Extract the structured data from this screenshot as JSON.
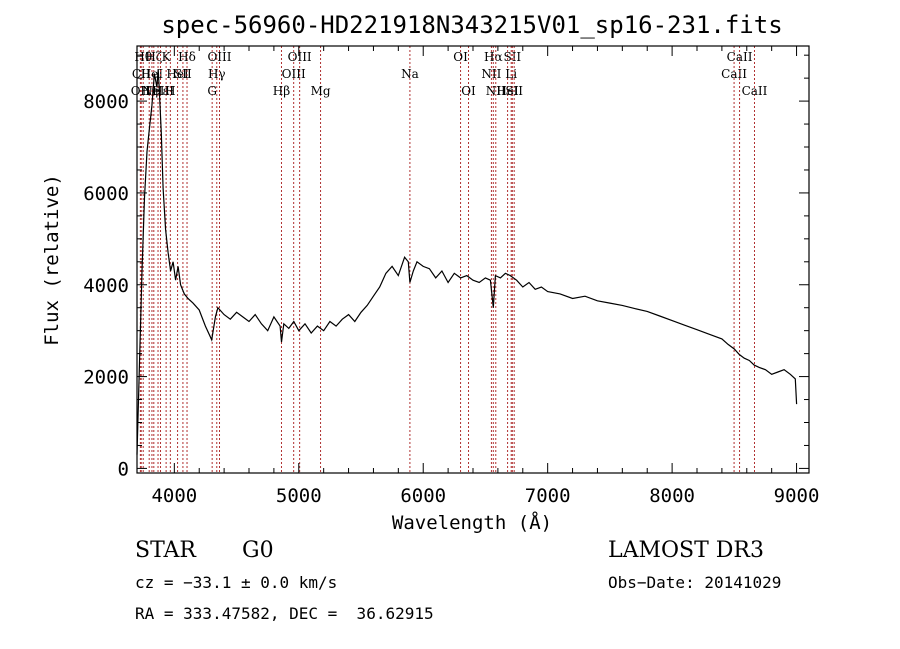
{
  "chart_data": {
    "type": "line",
    "title": "spec-56960-HD221918N343215V01_sp16-231.fits",
    "xlabel": "Wavelength (Å)",
    "ylabel": "Flux (relative)",
    "xlim": [
      3700,
      9100
    ],
    "ylim": [
      -100,
      9200
    ],
    "x_ticks": [
      4000,
      5000,
      6000,
      7000,
      8000,
      9000
    ],
    "y_ticks": [
      0,
      2000,
      4000,
      6000,
      8000
    ],
    "grid": false,
    "series": [
      {
        "x": [
          3700,
          3720,
          3740,
          3760,
          3780,
          3800,
          3820,
          3840,
          3860,
          3870,
          3880,
          3895,
          3910,
          3930,
          3950,
          3970,
          3990,
          4010,
          4030,
          4050,
          4080,
          4110,
          4150,
          4200,
          4250,
          4300,
          4330,
          4350,
          4400,
          4450,
          4500,
          4550,
          4600,
          4650,
          4700,
          4750,
          4800,
          4850,
          4861,
          4880,
          4920,
          4960,
          5000,
          5050,
          5100,
          5150,
          5200,
          5250,
          5300,
          5350,
          5400,
          5450,
          5500,
          5550,
          5600,
          5650,
          5700,
          5750,
          5800,
          5850,
          5880,
          5893,
          5920,
          5950,
          6000,
          6050,
          6100,
          6150,
          6200,
          6250,
          6300,
          6350,
          6400,
          6450,
          6500,
          6540,
          6563,
          6580,
          6620,
          6660,
          6700,
          6750,
          6800,
          6850,
          6900,
          6950,
          7000,
          7100,
          7200,
          7300,
          7400,
          7500,
          7600,
          7700,
          7800,
          7900,
          8000,
          8100,
          8200,
          8300,
          8400,
          8450,
          8500,
          8540,
          8580,
          8620,
          8660,
          8700,
          8750,
          8800,
          8850,
          8900,
          8950,
          8990,
          9000
        ],
        "y": [
          300,
          2300,
          4300,
          5900,
          6900,
          7400,
          7900,
          8600,
          8300,
          8700,
          8200,
          7300,
          6100,
          5200,
          4700,
          4300,
          4500,
          4100,
          4400,
          4000,
          3800,
          3700,
          3600,
          3450,
          3100,
          2800,
          3300,
          3500,
          3350,
          3250,
          3400,
          3300,
          3200,
          3350,
          3150,
          3000,
          3300,
          3100,
          2750,
          3150,
          3050,
          3200,
          3000,
          3150,
          2950,
          3100,
          3000,
          3200,
          3100,
          3250,
          3350,
          3200,
          3400,
          3550,
          3750,
          3950,
          4250,
          4400,
          4200,
          4600,
          4500,
          4050,
          4300,
          4500,
          4400,
          4350,
          4150,
          4300,
          4050,
          4250,
          4150,
          4200,
          4100,
          4050,
          4150,
          4100,
          3500,
          4200,
          4150,
          4250,
          4200,
          4100,
          3950,
          4050,
          3900,
          3950,
          3850,
          3800,
          3700,
          3750,
          3650,
          3600,
          3550,
          3480,
          3420,
          3320,
          3220,
          3120,
          3020,
          2920,
          2820,
          2700,
          2600,
          2480,
          2400,
          2350,
          2250,
          2200,
          2150,
          2050,
          2100,
          2150,
          2050,
          1950,
          1400
        ]
      }
    ],
    "lines": [
      {
        "x": 3727,
        "label": "OII",
        "row": 3
      },
      {
        "x": 3734,
        "label": "CII",
        "row": 2
      },
      {
        "x": 3750,
        "label": "Hθ",
        "row": 1
      },
      {
        "x": 3798,
        "label": "Hη",
        "row": 3
      },
      {
        "x": 3820,
        "label": "HeI",
        "row": 2
      },
      {
        "x": 3835,
        "label": "Hζ",
        "row": 1
      },
      {
        "x": 3869,
        "label": "NeIII",
        "row": 3
      },
      {
        "x": 3889,
        "label": "Hε",
        "row": 3
      },
      {
        "x": 3934,
        "label": "K",
        "row": 1
      },
      {
        "x": 3968,
        "label": "H",
        "row": 3
      },
      {
        "x": 4026,
        "label": "HeI",
        "row": 2
      },
      {
        "x": 4069,
        "label": "SII",
        "row": 2
      },
      {
        "x": 4102,
        "label": "Hδ",
        "row": 1
      },
      {
        "x": 4304,
        "label": "G",
        "row": 3
      },
      {
        "x": 4341,
        "label": "Hγ",
        "row": 2
      },
      {
        "x": 4363,
        "label": "OIII",
        "row": 1
      },
      {
        "x": 4861,
        "label": "Hβ",
        "row": 3
      },
      {
        "x": 4959,
        "label": "OIII",
        "row": 2
      },
      {
        "x": 5007,
        "label": "OIII",
        "row": 1
      },
      {
        "x": 5175,
        "label": "Mg",
        "row": 3
      },
      {
        "x": 5893,
        "label": "Na",
        "row": 2
      },
      {
        "x": 6300,
        "label": "OI",
        "row": 1
      },
      {
        "x": 6364,
        "label": "OI",
        "row": 3
      },
      {
        "x": 6548,
        "label": "NII",
        "row": 2
      },
      {
        "x": 6563,
        "label": "Hα",
        "row": 1
      },
      {
        "x": 6583,
        "label": "NII",
        "row": 3
      },
      {
        "x": 6678,
        "label": "HeI",
        "row": 3
      },
      {
        "x": 6707,
        "label": "Li",
        "row": 2
      },
      {
        "x": 6716,
        "label": "SII",
        "row": 1
      },
      {
        "x": 6731,
        "label": "SII",
        "row": 3
      },
      {
        "x": 8498,
        "label": "CaII",
        "row": 2
      },
      {
        "x": 8542,
        "label": "CaII",
        "row": 1
      },
      {
        "x": 8662,
        "label": "CaII",
        "row": 3
      }
    ],
    "line_color": "#b03030"
  },
  "info": {
    "class": "STAR",
    "subclass": "G0",
    "survey": "LAMOST DR3",
    "cz": "cz = −33.1 ± 0.0 km/s",
    "obs_date": "Obs−Date: 20141029",
    "coords": "RA = 333.47582, DEC =  36.62915"
  }
}
